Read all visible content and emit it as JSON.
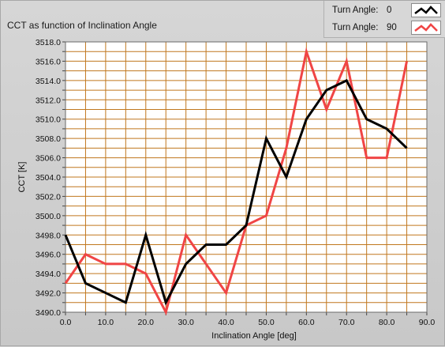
{
  "chart_data": {
    "type": "line",
    "title": "CCT as function of Inclination Angle",
    "xlabel": "Inclination Angle [deg]",
    "ylabel": "CCT [K]",
    "xlim": [
      0,
      90
    ],
    "ylim": [
      3490,
      3518
    ],
    "x_ticks": [
      "0.0",
      "10.0",
      "20.0",
      "30.0",
      "40.0",
      "50.0",
      "60.0",
      "70.0",
      "80.0",
      "90.0"
    ],
    "y_ticks": [
      "3490.0",
      "3492.0",
      "3494.0",
      "3496.0",
      "3498.0",
      "3500.0",
      "3502.0",
      "3504.0",
      "3506.0",
      "3508.0",
      "3510.0",
      "3512.0",
      "3514.0",
      "3516.0",
      "3518.0"
    ],
    "x_tick_step": 5,
    "y_tick_step": 1,
    "grid": true,
    "legend_position": "top-right",
    "x": [
      0,
      5,
      10,
      15,
      20,
      25,
      30,
      35,
      40,
      45,
      50,
      55,
      60,
      65,
      70,
      75,
      80,
      85
    ],
    "series": [
      {
        "name": "0",
        "legend_label": "Turn Angle:",
        "color": "#000000",
        "values": [
          3498,
          3493,
          3492,
          3491,
          3498,
          3491,
          3495,
          3497,
          3497,
          3499,
          3508,
          3504,
          3510,
          3513,
          3514,
          3510,
          3509,
          3507
        ]
      },
      {
        "name": "90",
        "legend_label": "Turn Angle:",
        "color": "#f04545",
        "values": [
          3493,
          3496,
          3495,
          3495,
          3494,
          3490,
          3498,
          3495,
          3492,
          3499,
          3500,
          3507,
          3517,
          3511,
          3516,
          3506,
          3506,
          3516
        ]
      }
    ],
    "colors": {
      "grid": "#c0771e",
      "plot_bg": "#ffffff",
      "frame_bg": "#d0d0d0"
    }
  }
}
